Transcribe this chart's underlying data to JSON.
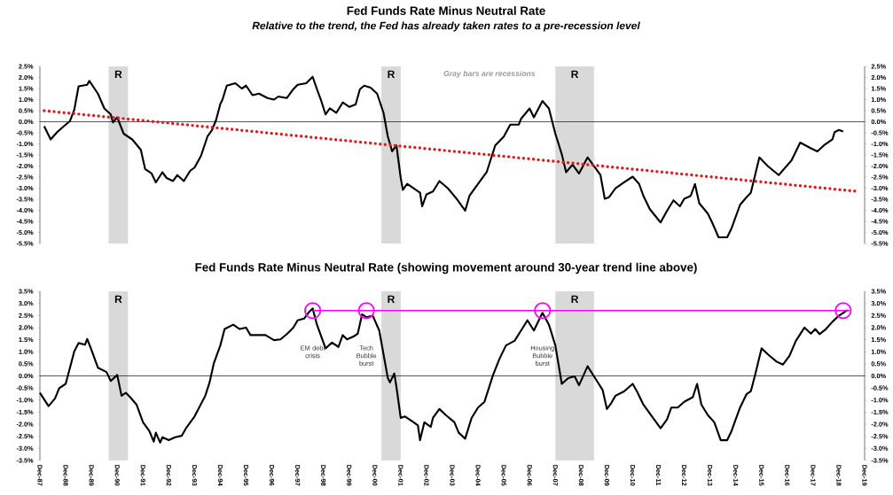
{
  "chart_data": [
    {
      "type": "line",
      "title": "Fed Funds Rate Minus Neutral  Rate",
      "subtitle": "Relative to the trend, the Fed has already taken rates to a pre-recession level",
      "annotations": [
        "Gray bars are recessions"
      ],
      "series": [
        {
          "color": "#000000",
          "x": [
            "1988-02",
            "1988-05",
            "1988-08",
            "1988-12",
            "1989-02",
            "1989-04",
            "1989-06",
            "1989-10",
            "1989-11",
            "1990-03",
            "1990-06",
            "1990-09",
            "1990-10",
            "1990-12",
            "1991-03",
            "1991-05",
            "1991-07",
            "1991-11",
            "1992-01",
            "1992-04",
            "1992-06",
            "1992-09",
            "1992-11",
            "1993-02",
            "1993-04",
            "1993-07",
            "1993-10",
            "1993-12",
            "1994-03",
            "1994-06",
            "1994-08",
            "1994-10",
            "1994-12",
            "1995-01",
            "1995-03",
            "1995-07",
            "1995-10",
            "1995-12",
            "1996-03",
            "1996-06",
            "1996-10",
            "1997-01",
            "1997-03",
            "1997-07",
            "1997-10",
            "1997-12",
            "1998-04",
            "1998-07",
            "1998-09",
            "1998-11",
            "1999-01",
            "1999-03",
            "1999-06",
            "1999-09",
            "1999-12",
            "2000-03",
            "2000-05",
            "2000-07",
            "2000-10",
            "2001-01",
            "2001-04",
            "2001-06",
            "2001-08",
            "2001-10",
            "2001-12",
            "2002-01",
            "2002-03",
            "2002-06",
            "2002-09",
            "2002-10",
            "2002-12",
            "2003-03",
            "2003-06",
            "2003-10",
            "2004-02",
            "2004-06",
            "2004-08",
            "2004-12",
            "2005-04",
            "2005-08",
            "2005-12",
            "2006-03",
            "2006-07",
            "2006-08",
            "2006-12",
            "2007-02",
            "2007-06",
            "2007-09",
            "2007-12",
            "2008-03",
            "2008-05",
            "2008-08",
            "2008-11",
            "2009-03",
            "2009-06",
            "2009-09",
            "2009-11",
            "2010-01",
            "2010-04",
            "2010-08",
            "2010-12",
            "2011-03",
            "2011-05",
            "2011-08",
            "2012-01",
            "2012-04",
            "2012-07",
            "2012-10",
            "2012-12",
            "2013-03",
            "2013-05",
            "2013-07",
            "2013-11",
            "2014-01",
            "2014-04",
            "2014-08",
            "2014-10",
            "2015-02",
            "2015-05",
            "2015-07",
            "2015-11",
            "2016-03",
            "2016-08",
            "2017-02",
            "2017-06",
            "2017-11",
            "2018-02",
            "2018-05",
            "2018-09",
            "2018-10",
            "2018-12",
            "2019-02"
          ],
          "values": [
            -0.2,
            -0.8,
            -0.47,
            -0.13,
            0.03,
            0.54,
            1.6,
            1.67,
            1.85,
            1.27,
            0.6,
            0.33,
            -0.03,
            0.2,
            -0.54,
            -0.67,
            -0.8,
            -1.27,
            -2.14,
            -2.34,
            -2.74,
            -2.28,
            -2.54,
            -2.68,
            -2.41,
            -2.68,
            -2.21,
            -2.07,
            -1.54,
            -0.67,
            -0.4,
            0.07,
            0.8,
            1.0,
            1.63,
            1.74,
            1.5,
            1.63,
            1.2,
            1.27,
            1.07,
            1.0,
            1.14,
            1.07,
            1.47,
            1.67,
            1.74,
            2.03,
            1.47,
            0.94,
            0.33,
            0.6,
            0.4,
            0.87,
            0.67,
            0.78,
            1.47,
            1.63,
            1.54,
            1.27,
            0.4,
            -0.67,
            -1.34,
            -1.07,
            -2.54,
            -3.08,
            -2.81,
            -3.01,
            -3.21,
            -3.82,
            -3.28,
            -3.15,
            -2.68,
            -3.01,
            -3.48,
            -4.02,
            -3.35,
            -2.81,
            -2.28,
            -1.07,
            -0.67,
            -0.13,
            -0.13,
            0.13,
            0.6,
            0.2,
            0.94,
            0.6,
            -0.54,
            -1.47,
            -2.28,
            -1.94,
            -2.34,
            -1.61,
            -2.01,
            -2.41,
            -3.48,
            -3.41,
            -3.01,
            -2.74,
            -2.48,
            -2.81,
            -3.35,
            -3.95,
            -4.55,
            -4.02,
            -3.55,
            -3.82,
            -3.48,
            -3.35,
            -2.81,
            -3.68,
            -4.15,
            -4.55,
            -5.22,
            -5.22,
            -4.82,
            -3.75,
            -3.41,
            -3.21,
            -1.61,
            -2.01,
            -2.41,
            -1.74,
            -0.94,
            -1.2,
            -1.34,
            -1.07,
            -0.8,
            -0.47,
            -0.37,
            -0.44
          ]
        },
        {
          "type": "line",
          "color": "#e31a1c",
          "line_style": "dotted",
          "x": [
            "1988-02",
            "2019-09"
          ],
          "values": [
            0.5,
            -3.15
          ]
        }
      ],
      "xlim": [
        "1987-12",
        "2019-12"
      ],
      "xticks": [
        {
          "value": "1987-12",
          "label": null
        },
        {
          "value": "1988-12",
          "label": null
        },
        {
          "value": "1989-12",
          "label": null
        },
        {
          "value": "1990-12",
          "label": null
        },
        {
          "value": "1991-12",
          "label": null
        },
        {
          "value": "1992-12",
          "label": null
        },
        {
          "value": "1993-12",
          "label": null
        },
        {
          "value": "1994-12",
          "label": null
        },
        {
          "value": "1995-12",
          "label": null
        },
        {
          "value": "1996-12",
          "label": null
        },
        {
          "value": "1997-12",
          "label": null
        },
        {
          "value": "1998-12",
          "label": null
        },
        {
          "value": "1999-12",
          "label": null
        },
        {
          "value": "2000-12",
          "label": null
        },
        {
          "value": "2001-12",
          "label": null
        },
        {
          "value": "2002-12",
          "label": null
        },
        {
          "value": "2003-12",
          "label": null
        },
        {
          "value": "2004-12",
          "label": null
        },
        {
          "value": "2005-12",
          "label": null
        },
        {
          "value": "2006-12",
          "label": null
        },
        {
          "value": "2007-12",
          "label": null
        },
        {
          "value": "2008-12",
          "label": null
        },
        {
          "value": "2009-12",
          "label": null
        },
        {
          "value": "2010-12",
          "label": null
        },
        {
          "value": "2011-12",
          "label": null
        },
        {
          "value": "2012-12",
          "label": null
        },
        {
          "value": "2013-12",
          "label": null
        },
        {
          "value": "2014-12",
          "label": null
        },
        {
          "value": "2015-12",
          "label": null
        },
        {
          "value": "2016-12",
          "label": null
        },
        {
          "value": "2017-12",
          "label": null
        },
        {
          "value": "2018-12",
          "label": null
        },
        {
          "value": "2019-12",
          "label": null
        }
      ],
      "ylim": [
        -5.5,
        2.5
      ],
      "yticks": [
        {
          "value": -5.5,
          "label": "-5.5%"
        },
        {
          "value": -5,
          "label": "-5.0%"
        },
        {
          "value": -4.5,
          "label": "-4.5%"
        },
        {
          "value": -4,
          "label": "-4.0%"
        },
        {
          "value": -3.5,
          "label": "-3.5%"
        },
        {
          "value": -3,
          "label": "-3.0%"
        },
        {
          "value": -2.5,
          "label": "-2.5%"
        },
        {
          "value": -2,
          "label": "-2.0%"
        },
        {
          "value": -1.5,
          "label": "-1.5%"
        },
        {
          "value": -1,
          "label": "-1.0%"
        },
        {
          "value": -0.5,
          "label": "-0.5%"
        },
        {
          "value": 0,
          "label": "0.0%"
        },
        {
          "value": 0.5,
          "label": "0.5%"
        },
        {
          "value": 1,
          "label": "1.0%"
        },
        {
          "value": 1.5,
          "label": "1.5%"
        },
        {
          "value": 2,
          "label": "2.0%"
        },
        {
          "value": 2.5,
          "label": "2.5%"
        }
      ],
      "y2lim": [
        -5.5,
        2.5
      ],
      "y2ticks": [
        {
          "value": -5.5,
          "label": "-5.5%"
        },
        {
          "value": -5,
          "label": "-5.0%"
        },
        {
          "value": -4.5,
          "label": "-4.5%"
        },
        {
          "value": -4,
          "label": "-4.0%"
        },
        {
          "value": -3.5,
          "label": "-3.5%"
        },
        {
          "value": -3,
          "label": "-3.0%"
        },
        {
          "value": -2.5,
          "label": "-2.5%"
        },
        {
          "value": -2,
          "label": "-2.0%"
        },
        {
          "value": -1.5,
          "label": "-1.5%"
        },
        {
          "value": -1,
          "label": "-1.0%"
        },
        {
          "value": -0.5,
          "label": "-0.5%"
        },
        {
          "value": 0,
          "label": "0.0%"
        },
        {
          "value": 0.5,
          "label": "0.5%"
        },
        {
          "value": 1,
          "label": "1.0%"
        },
        {
          "value": 1.5,
          "label": "1.5%"
        },
        {
          "value": 2,
          "label": "2.0%"
        },
        {
          "value": 2.5,
          "label": "2.5%"
        }
      ],
      "bands": [
        {
          "axis": "x",
          "from": "1990-08",
          "to": "1991-05",
          "label": "R",
          "color": "#d9d9d9"
        },
        {
          "axis": "x",
          "from": "2001-03",
          "to": "2001-12",
          "label": "R",
          "color": "#d9d9d9"
        },
        {
          "axis": "x",
          "from": "2007-12",
          "to": "2009-06",
          "label": "R",
          "color": "#d9d9d9"
        }
      ],
      "ref_lines": [
        {
          "axis": "y",
          "value": 0,
          "color": "#000000"
        }
      ],
      "tick_labels": "y"
    },
    {
      "type": "line",
      "title": "Fed Funds Rate Minus Neutral Rate (showing  movement  around  30-year  trend  line  above)",
      "annotations": [
        "EM debt crisis",
        "Tech Bubble burst",
        "Housing Bubble burst"
      ],
      "series": [
        {
          "color": "#000000",
          "x": [
            "1987-12",
            "1988-04",
            "1988-07",
            "1988-09",
            "1988-12",
            "1989-02",
            "1989-04",
            "1989-06",
            "1989-09",
            "1989-10",
            "1989-12",
            "1990-03",
            "1990-07",
            "1990-09",
            "1990-12",
            "1991-02",
            "1991-04",
            "1991-06",
            "1991-09",
            "1991-12",
            "1992-03",
            "1992-05",
            "1992-06",
            "1992-08",
            "1992-09",
            "1992-12",
            "1993-03",
            "1993-06",
            "1993-08",
            "1993-12",
            "1994-05",
            "1994-07",
            "1994-09",
            "1994-12",
            "1995-02",
            "1995-06",
            "1995-09",
            "1995-12",
            "1996-02",
            "1996-06",
            "1996-09",
            "1997-01",
            "1997-04",
            "1997-07",
            "1997-10",
            "1997-12",
            "1998-03",
            "1998-05",
            "1998-07",
            "1998-09",
            "1998-11",
            "1999-01",
            "1999-04",
            "1999-07",
            "1999-09",
            "1999-11",
            "2000-02",
            "2000-04",
            "2000-06",
            "2000-08",
            "2000-11",
            "2001-02",
            "2001-04",
            "2001-06",
            "2001-07",
            "2001-09",
            "2001-10",
            "2001-12",
            "2002-02",
            "2002-06",
            "2002-08",
            "2002-09",
            "2002-11",
            "2003-02",
            "2003-03",
            "2003-06",
            "2003-09",
            "2004-01",
            "2004-03",
            "2004-06",
            "2004-09",
            "2004-12",
            "2005-03",
            "2005-07",
            "2005-10",
            "2006-01",
            "2006-05",
            "2006-07",
            "2006-11",
            "2007-02",
            "2007-06",
            "2007-09",
            "2007-12",
            "2008-03",
            "2008-06",
            "2008-09",
            "2008-11",
            "2009-03",
            "2009-06",
            "2009-10",
            "2009-12",
            "2010-02",
            "2010-04",
            "2010-08",
            "2010-12",
            "2011-02",
            "2011-05",
            "2011-09",
            "2012-01",
            "2012-04",
            "2012-06",
            "2012-09",
            "2012-12",
            "2013-04",
            "2013-06",
            "2013-08",
            "2013-11",
            "2014-02",
            "2014-05",
            "2014-08",
            "2014-10",
            "2015-02",
            "2015-05",
            "2015-07",
            "2015-09",
            "2015-12",
            "2016-03",
            "2016-07",
            "2016-10",
            "2017-01",
            "2017-04",
            "2017-08",
            "2017-11",
            "2018-01",
            "2018-03",
            "2018-06",
            "2018-09",
            "2018-12",
            "2019-02",
            "2019-04"
          ],
          "values": [
            -0.7,
            -1.25,
            -0.94,
            -0.51,
            -0.33,
            0.34,
            1.02,
            1.36,
            1.29,
            1.53,
            1.08,
            0.34,
            0.16,
            -0.21,
            0.04,
            -0.82,
            -0.7,
            -0.88,
            -1.19,
            -1.92,
            -2.29,
            -2.72,
            -2.35,
            -2.76,
            -2.54,
            -2.66,
            -2.54,
            -2.48,
            -2.17,
            -1.68,
            -0.82,
            -0.27,
            0.53,
            1.26,
            1.94,
            2.12,
            1.94,
            2.0,
            1.69,
            1.69,
            1.69,
            1.48,
            1.51,
            1.73,
            2.0,
            2.3,
            2.37,
            2.61,
            2.79,
            2.12,
            1.63,
            1.14,
            1.38,
            1.2,
            1.69,
            1.51,
            1.63,
            1.75,
            2.55,
            2.43,
            2.49,
            1.88,
            0.89,
            -0.09,
            -0.27,
            0.1,
            -0.45,
            -1.74,
            -1.68,
            -1.92,
            -2.05,
            -2.66,
            -1.92,
            -2.11,
            -1.74,
            -1.37,
            -1.62,
            -1.92,
            -2.35,
            -2.6,
            -1.74,
            -1.31,
            -1.07,
            0.04,
            0.71,
            1.26,
            1.45,
            1.73,
            2.3,
            1.88,
            2.61,
            2.12,
            1.26,
            -0.33,
            -0.09,
            -0.02,
            -0.39,
            0.4,
            -0.02,
            -0.58,
            -1.37,
            -1.13,
            -0.82,
            -0.64,
            -0.33,
            -0.64,
            -1.19,
            -1.68,
            -2.17,
            -1.8,
            -1.31,
            -1.31,
            -1.07,
            -0.88,
            -0.33,
            -1.19,
            -1.62,
            -1.92,
            -2.66,
            -2.66,
            -2.29,
            -1.31,
            -0.76,
            -0.64,
            0.04,
            1.14,
            0.89,
            0.59,
            0.47,
            0.83,
            1.45,
            2.0,
            1.75,
            1.94,
            1.73,
            1.94,
            2.24,
            2.49,
            2.61,
            2.73
          ]
        },
        {
          "type": "line",
          "color": "#ff00ff",
          "x": [
            "1998-07",
            "2019-05"
          ],
          "values": [
            2.7,
            2.7
          ]
        },
        {
          "type": "scatter",
          "marker": "circle",
          "color": "#ff00ff",
          "x": [
            "1998-07",
            "2000-08",
            "2007-06",
            "2019-02"
          ],
          "values": [
            2.7,
            2.7,
            2.7,
            2.7
          ]
        }
      ],
      "xlim": [
        "1987-12",
        "2019-12"
      ],
      "xticks": [
        {
          "value": "1987-12",
          "label": "Dec-87"
        },
        {
          "value": "1988-12",
          "label": "Dec-88"
        },
        {
          "value": "1989-12",
          "label": "Dec-89"
        },
        {
          "value": "1990-12",
          "label": "Dec-90"
        },
        {
          "value": "1991-12",
          "label": "Dec-91"
        },
        {
          "value": "1992-12",
          "label": "Dec-92"
        },
        {
          "value": "1993-12",
          "label": "Dec-93"
        },
        {
          "value": "1994-12",
          "label": "Dec-94"
        },
        {
          "value": "1995-12",
          "label": "Dec-95"
        },
        {
          "value": "1996-12",
          "label": "Dec-96"
        },
        {
          "value": "1997-12",
          "label": "Dec-97"
        },
        {
          "value": "1998-12",
          "label": "Dec-98"
        },
        {
          "value": "1999-12",
          "label": "Dec-99"
        },
        {
          "value": "2000-12",
          "label": "Dec-00"
        },
        {
          "value": "2001-12",
          "label": "Dec-01"
        },
        {
          "value": "2002-12",
          "label": "Dec-02"
        },
        {
          "value": "2003-12",
          "label": "Dec-03"
        },
        {
          "value": "2004-12",
          "label": "Dec-04"
        },
        {
          "value": "2005-12",
          "label": "Dec-05"
        },
        {
          "value": "2006-12",
          "label": "Dec-06"
        },
        {
          "value": "2007-12",
          "label": "Dec-07"
        },
        {
          "value": "2008-12",
          "label": "Dec-08"
        },
        {
          "value": "2009-12",
          "label": "Dec-09"
        },
        {
          "value": "2010-12",
          "label": "Dec-10"
        },
        {
          "value": "2011-12",
          "label": "Dec-11"
        },
        {
          "value": "2012-12",
          "label": "Dec-12"
        },
        {
          "value": "2013-12",
          "label": "Dec-13"
        },
        {
          "value": "2014-12",
          "label": "Dec-14"
        },
        {
          "value": "2015-12",
          "label": "Dec-15"
        },
        {
          "value": "2016-12",
          "label": "Dec-16"
        },
        {
          "value": "2017-12",
          "label": "Dec-17"
        },
        {
          "value": "2018-12",
          "label": "Dec-18"
        },
        {
          "value": "2019-12",
          "label": "Dec-19"
        }
      ],
      "ylim": [
        -3.5,
        3.5
      ],
      "yticks": [
        {
          "value": -3.5,
          "label": "-3.5%"
        },
        {
          "value": -3,
          "label": "-3.0%"
        },
        {
          "value": -2.5,
          "label": "-2.5%"
        },
        {
          "value": -2,
          "label": "-2.0%"
        },
        {
          "value": -1.5,
          "label": "-1.5%"
        },
        {
          "value": -1,
          "label": "-1.0%"
        },
        {
          "value": -0.5,
          "label": "-0.5%"
        },
        {
          "value": 0,
          "label": "0.0%"
        },
        {
          "value": 0.5,
          "label": "0.5%"
        },
        {
          "value": 1,
          "label": "1.0%"
        },
        {
          "value": 1.5,
          "label": "1.5%"
        },
        {
          "value": 2,
          "label": "2.0%"
        },
        {
          "value": 2.5,
          "label": "2.5%"
        },
        {
          "value": 3,
          "label": "3.0%"
        },
        {
          "value": 3.5,
          "label": "3.5%"
        }
      ],
      "y2lim": [
        -3.5,
        3.5
      ],
      "y2ticks": [
        {
          "value": -3.5,
          "label": "-3.5%"
        },
        {
          "value": -3,
          "label": "-3.0%"
        },
        {
          "value": -2.5,
          "label": "-2.5%"
        },
        {
          "value": -2,
          "label": "-2.0%"
        },
        {
          "value": -1.5,
          "label": "-1.5%"
        },
        {
          "value": -1,
          "label": "-1.0%"
        },
        {
          "value": -0.5,
          "label": "-0.5%"
        },
        {
          "value": 0,
          "label": "0.0%"
        },
        {
          "value": 0.5,
          "label": "0.5%"
        },
        {
          "value": 1,
          "label": "1.0%"
        },
        {
          "value": 1.5,
          "label": "1.5%"
        },
        {
          "value": 2,
          "label": "2.0%"
        },
        {
          "value": 2.5,
          "label": "2.5%"
        },
        {
          "value": 3,
          "label": "3.0%"
        },
        {
          "value": 3.5,
          "label": "3.5%"
        }
      ],
      "bands": [
        {
          "axis": "x",
          "from": "1990-08",
          "to": "1991-05",
          "label": "R",
          "color": "#d9d9d9"
        },
        {
          "axis": "x",
          "from": "2001-03",
          "to": "2001-12",
          "label": "R",
          "color": "#d9d9d9"
        },
        {
          "axis": "x",
          "from": "2007-12",
          "to": "2009-06",
          "label": "R",
          "color": "#d9d9d9"
        }
      ],
      "ref_lines": [
        {
          "axis": "y",
          "value": 0,
          "color": "#000000"
        }
      ]
    }
  ]
}
